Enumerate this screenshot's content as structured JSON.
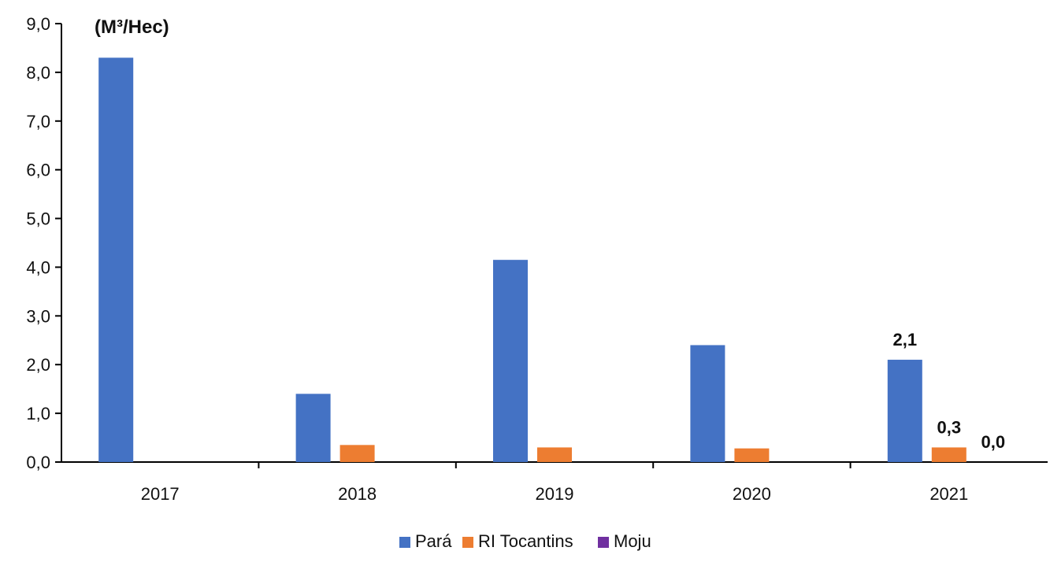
{
  "chart_data": {
    "type": "bar",
    "title": "",
    "unit_label": "(M³/Hec)",
    "xlabel": "",
    "ylabel": "",
    "categories": [
      "2017",
      "2018",
      "2019",
      "2020",
      "2021"
    ],
    "series": [
      {
        "name": "Pará",
        "color": "#4472C4",
        "values": [
          8.3,
          1.4,
          4.15,
          2.4,
          2.1
        ]
      },
      {
        "name": "RI Tocantins",
        "color": "#ED7D31",
        "values": [
          0,
          0.35,
          0.3,
          0.28,
          0.3
        ]
      },
      {
        "name": "Moju",
        "color": "#7030A0",
        "values": [
          0,
          0,
          0,
          0,
          0
        ]
      }
    ],
    "ylim": [
      0,
      9
    ],
    "yticks": [
      "0,0",
      "1,0",
      "2,0",
      "3,0",
      "4,0",
      "5,0",
      "6,0",
      "7,0",
      "8,0",
      "9,0"
    ],
    "data_labels": [
      {
        "category": "2021",
        "series": "Pará",
        "text": "2,1"
      },
      {
        "category": "2021",
        "series": "RI Tocantins",
        "text": "0,3"
      },
      {
        "category": "2021",
        "series": "Moju",
        "text": "0,0"
      }
    ],
    "grid": false,
    "legend_position": "bottom"
  }
}
